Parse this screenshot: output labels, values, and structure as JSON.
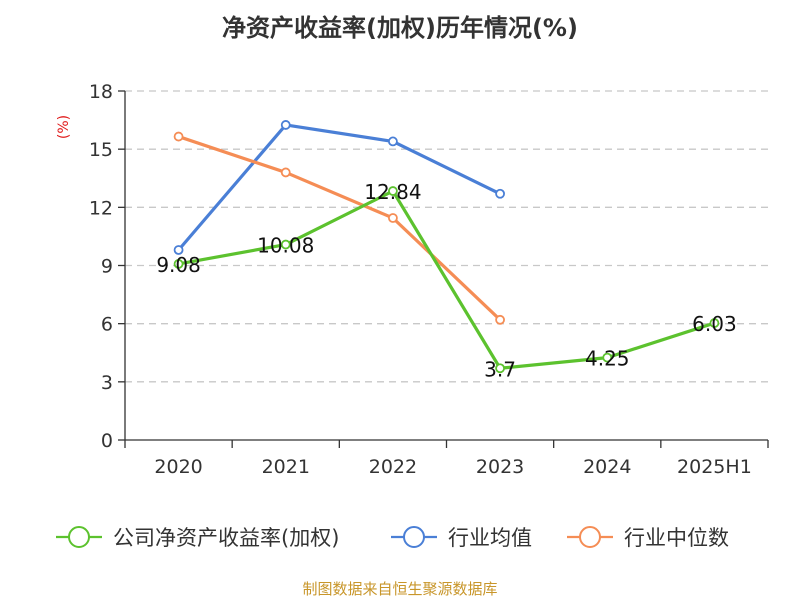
{
  "chart_data": {
    "type": "line",
    "title": "净资产收益率(加权)历年情况(%)",
    "ylabel": "(%)",
    "xlabel": "",
    "categories": [
      "2020",
      "2021",
      "2022",
      "2023",
      "2024",
      "2025H1"
    ],
    "ylim": [
      0,
      18
    ],
    "yticks": [
      0,
      3,
      6,
      9,
      12,
      15,
      18
    ],
    "grid": true,
    "legend_position": "bottom",
    "series": [
      {
        "name": "公司净资产收益率(加权)",
        "color": "#5cc22e",
        "values": [
          9.08,
          10.08,
          12.84,
          3.7,
          4.25,
          6.03
        ],
        "labels": [
          "9.08",
          "10.08",
          "12.84",
          "3.7",
          "4.25",
          "6.03"
        ]
      },
      {
        "name": "行业均值",
        "color": "#4a7fd6",
        "values": [
          9.8,
          16.25,
          15.4,
          12.7,
          null,
          null
        ]
      },
      {
        "name": "行业中位数",
        "color": "#f58d55",
        "values": [
          15.65,
          13.8,
          11.45,
          6.2,
          null,
          null
        ]
      }
    ]
  },
  "source": "制图数据来自恒生聚源数据库"
}
